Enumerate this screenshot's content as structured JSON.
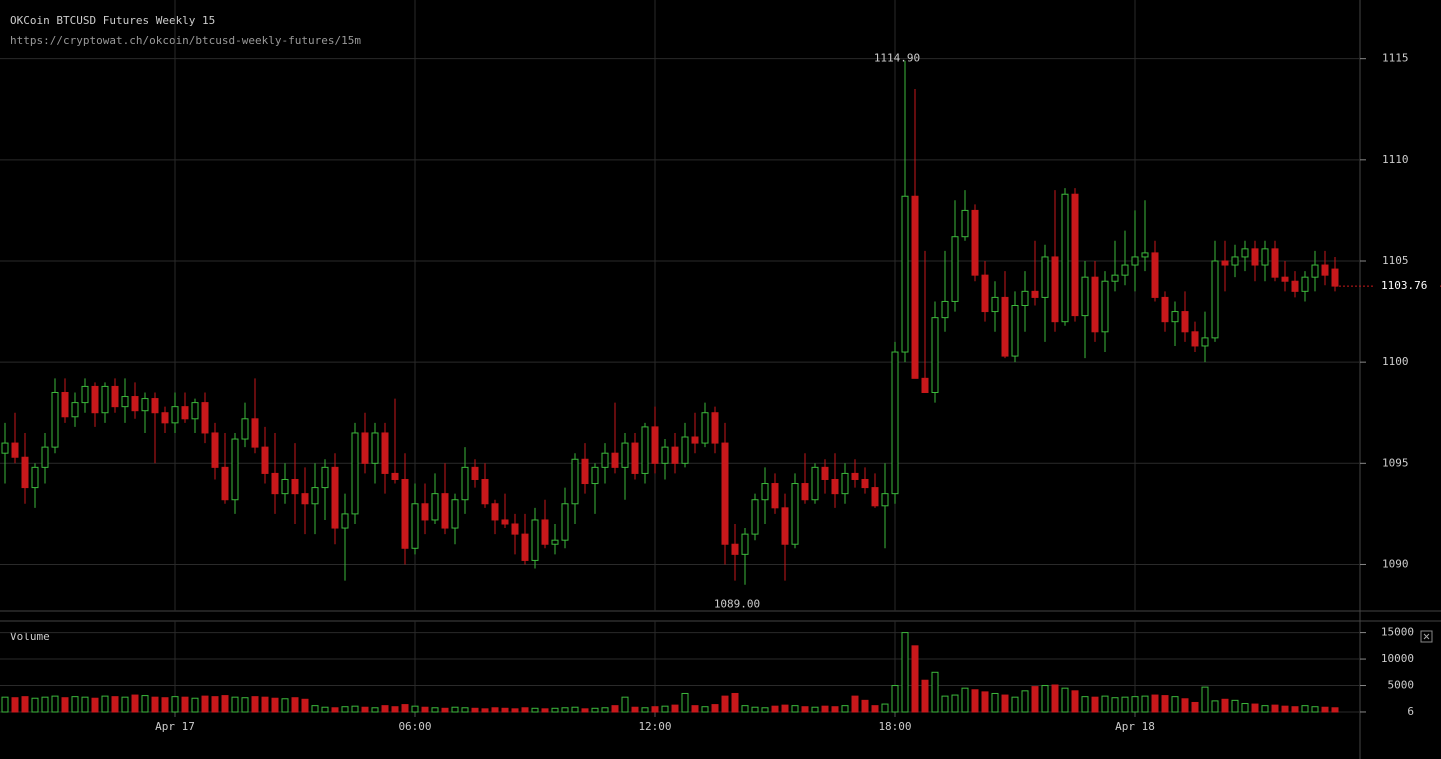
{
  "chart_data": [
    {
      "type": "candlestick",
      "title": "OKCoin BTCUSD Futures Weekly 15",
      "subtitle": "https://cryptowat.ch/okcoin/btcusd-weekly-futures/15m",
      "up_color": "#3cb83c",
      "down_color": "#c8181b",
      "xlim": [
        -0.5,
        135.5
      ],
      "xticks": [
        {
          "value": 17,
          "label": "Apr 17"
        },
        {
          "value": 41,
          "label": "06:00"
        },
        {
          "value": 65,
          "label": "12:00"
        },
        {
          "value": 89,
          "label": "18:00"
        },
        {
          "value": 113,
          "label": "Apr 18"
        }
      ],
      "ylim": [
        1087.7,
        1117.9
      ],
      "yticks": [
        1090,
        1095,
        1100,
        1105,
        1110,
        1115
      ],
      "grid": true,
      "last_price": {
        "value": 1103.76,
        "label": "1103.76"
      },
      "annotations": [
        {
          "x": 90,
          "value": 1114.9,
          "label": "1114.90",
          "position": "above"
        },
        {
          "x": 74,
          "value": 1089,
          "label": "1089.00",
          "position": "below"
        }
      ],
      "candles": [
        [
          1095.5,
          1097,
          1094,
          1096
        ],
        [
          1096,
          1097.5,
          1095,
          1095.3
        ],
        [
          1095.3,
          1096.5,
          1093,
          1093.8
        ],
        [
          1093.8,
          1095,
          1092.8,
          1094.8
        ],
        [
          1094.8,
          1096.5,
          1094,
          1095.8
        ],
        [
          1095.8,
          1099.2,
          1095.5,
          1098.5
        ],
        [
          1098.5,
          1099.2,
          1097,
          1097.3
        ],
        [
          1097.3,
          1098.5,
          1096.8,
          1098
        ],
        [
          1098,
          1099.2,
          1097.5,
          1098.8
        ],
        [
          1098.8,
          1099,
          1096.8,
          1097.5
        ],
        [
          1097.5,
          1099,
          1097,
          1098.8
        ],
        [
          1098.8,
          1099.2,
          1097.5,
          1097.8
        ],
        [
          1097.8,
          1099.2,
          1097,
          1098.3
        ],
        [
          1098.3,
          1099,
          1097.2,
          1097.6
        ],
        [
          1097.6,
          1098.5,
          1096.5,
          1098.2
        ],
        [
          1098.2,
          1098.5,
          1095,
          1097.5
        ],
        [
          1097.5,
          1097.8,
          1096.5,
          1097
        ],
        [
          1097,
          1098.5,
          1096.5,
          1097.8
        ],
        [
          1097.8,
          1098.5,
          1097,
          1097.2
        ],
        [
          1097.2,
          1098.2,
          1096.5,
          1098
        ],
        [
          1098,
          1098.5,
          1096,
          1096.5
        ],
        [
          1096.5,
          1097,
          1094.2,
          1094.8
        ],
        [
          1094.8,
          1096.5,
          1093,
          1093.2
        ],
        [
          1093.2,
          1096.5,
          1092.5,
          1096.2
        ],
        [
          1096.2,
          1098,
          1095.8,
          1097.2
        ],
        [
          1097.2,
          1099.2,
          1095.5,
          1095.8
        ],
        [
          1095.8,
          1096.8,
          1094,
          1094.5
        ],
        [
          1094.5,
          1096.5,
          1092.5,
          1093.5
        ],
        [
          1093.5,
          1095,
          1093,
          1094.2
        ],
        [
          1094.2,
          1096,
          1092,
          1093.5
        ],
        [
          1093.5,
          1094.8,
          1091.5,
          1093
        ],
        [
          1093,
          1095,
          1091.5,
          1093.8
        ],
        [
          1093.8,
          1095.2,
          1092.2,
          1094.8
        ],
        [
          1094.8,
          1095.5,
          1091,
          1091.8
        ],
        [
          1091.8,
          1093.5,
          1089.2,
          1092.5
        ],
        [
          1092.5,
          1097,
          1092,
          1096.5
        ],
        [
          1096.5,
          1097.5,
          1094.5,
          1095
        ],
        [
          1095,
          1097,
          1094,
          1096.5
        ],
        [
          1096.5,
          1097,
          1093.5,
          1094.5
        ],
        [
          1094.5,
          1098.2,
          1094,
          1094.2
        ],
        [
          1094.2,
          1095.5,
          1090,
          1090.8
        ],
        [
          1090.8,
          1094,
          1090.5,
          1093
        ],
        [
          1093,
          1094,
          1091.5,
          1092.2
        ],
        [
          1092.2,
          1094.5,
          1092,
          1093.5
        ],
        [
          1093.5,
          1095,
          1091.5,
          1091.8
        ],
        [
          1091.8,
          1093.5,
          1091,
          1093.2
        ],
        [
          1093.2,
          1095.8,
          1092.5,
          1094.8
        ],
        [
          1094.8,
          1095.2,
          1093.8,
          1094.2
        ],
        [
          1094.2,
          1095,
          1092.8,
          1093
        ],
        [
          1093,
          1093.2,
          1091.5,
          1092.2
        ],
        [
          1092.2,
          1093.5,
          1091.8,
          1092
        ],
        [
          1092,
          1092.5,
          1090.5,
          1091.5
        ],
        [
          1091.5,
          1092.5,
          1090,
          1090.2
        ],
        [
          1090.2,
          1092.8,
          1089.8,
          1092.2
        ],
        [
          1092.2,
          1093.2,
          1090.8,
          1091
        ],
        [
          1091,
          1092,
          1090.5,
          1091.2
        ],
        [
          1091.2,
          1093.8,
          1090.8,
          1093
        ],
        [
          1093,
          1095.5,
          1092,
          1095.2
        ],
        [
          1095.2,
          1096,
          1093.5,
          1094
        ],
        [
          1094,
          1095,
          1092.5,
          1094.8
        ],
        [
          1094.8,
          1096,
          1094,
          1095.5
        ],
        [
          1095.5,
          1098,
          1094.5,
          1094.8
        ],
        [
          1094.8,
          1096.5,
          1093.2,
          1096
        ],
        [
          1096,
          1096.5,
          1094.2,
          1094.5
        ],
        [
          1094.5,
          1097,
          1094,
          1096.8
        ],
        [
          1096.8,
          1097.8,
          1094.5,
          1095
        ],
        [
          1095,
          1096.2,
          1094.2,
          1095.8
        ],
        [
          1095.8,
          1096.5,
          1094.5,
          1095
        ],
        [
          1095,
          1097,
          1094.8,
          1096.3
        ],
        [
          1096.3,
          1097.5,
          1095.5,
          1096
        ],
        [
          1096,
          1098,
          1095.8,
          1097.5
        ],
        [
          1097.5,
          1097.8,
          1095.5,
          1096
        ],
        [
          1096,
          1097,
          1090,
          1091
        ],
        [
          1091,
          1092,
          1089.2,
          1090.5
        ],
        [
          1090.5,
          1091.8,
          1089,
          1091.5
        ],
        [
          1091.5,
          1093.5,
          1091.2,
          1093.2
        ],
        [
          1093.2,
          1094.8,
          1092,
          1094
        ],
        [
          1094,
          1094.5,
          1092.5,
          1092.8
        ],
        [
          1092.8,
          1093.5,
          1089.2,
          1091
        ],
        [
          1091,
          1094.5,
          1090.8,
          1094
        ],
        [
          1094,
          1095.5,
          1093,
          1093.2
        ],
        [
          1093.2,
          1095,
          1093,
          1094.8
        ],
        [
          1094.8,
          1095.2,
          1093.5,
          1094.2
        ],
        [
          1094.2,
          1095.5,
          1092.8,
          1093.5
        ],
        [
          1093.5,
          1095,
          1093,
          1094.5
        ],
        [
          1094.5,
          1095.2,
          1093.8,
          1094.2
        ],
        [
          1094.2,
          1094.8,
          1093.5,
          1093.8
        ],
        [
          1093.8,
          1094.5,
          1092.8,
          1092.9
        ],
        [
          1092.9,
          1095,
          1090.8,
          1093.5
        ],
        [
          1093.5,
          1101,
          1093,
          1100.5
        ],
        [
          1100.5,
          1114.9,
          1100,
          1108.2
        ],
        [
          1108.2,
          1113.5,
          1099.5,
          1099.2
        ],
        [
          1099.2,
          1105.5,
          1098.8,
          1098.5
        ],
        [
          1098.5,
          1103,
          1098,
          1102.2
        ],
        [
          1102.2,
          1105.5,
          1101.5,
          1103
        ],
        [
          1103,
          1108,
          1102.5,
          1106.2
        ],
        [
          1106.2,
          1108.5,
          1106,
          1107.5
        ],
        [
          1107.5,
          1107.8,
          1104,
          1104.3
        ],
        [
          1104.3,
          1105,
          1102,
          1102.5
        ],
        [
          1102.5,
          1104,
          1101.5,
          1103.2
        ],
        [
          1103.2,
          1104.5,
          1100.2,
          1100.3
        ],
        [
          1100.3,
          1103.5,
          1100,
          1102.8
        ],
        [
          1102.8,
          1104.5,
          1101.5,
          1103.5
        ],
        [
          1103.5,
          1106,
          1102.8,
          1103.2
        ],
        [
          1103.2,
          1105.8,
          1101,
          1105.2
        ],
        [
          1105.2,
          1108.5,
          1101.5,
          1102
        ],
        [
          1102,
          1108.6,
          1101.8,
          1108.3
        ],
        [
          1108.3,
          1108.6,
          1102,
          1102.3
        ],
        [
          1102.3,
          1105,
          1100.2,
          1104.2
        ],
        [
          1104.2,
          1105,
          1101,
          1101.5
        ],
        [
          1101.5,
          1104.5,
          1100.5,
          1104
        ],
        [
          1104,
          1106,
          1103.5,
          1104.3
        ],
        [
          1104.3,
          1106.5,
          1103.8,
          1104.8
        ],
        [
          1104.8,
          1107.5,
          1103.5,
          1105.2
        ],
        [
          1105.2,
          1108,
          1104.5,
          1105.4
        ],
        [
          1105.4,
          1106,
          1103,
          1103.2
        ],
        [
          1103.2,
          1103.5,
          1101.5,
          1102
        ],
        [
          1102,
          1103,
          1100.8,
          1102.5
        ],
        [
          1102.5,
          1103.5,
          1101,
          1101.5
        ],
        [
          1101.5,
          1102,
          1100.5,
          1100.8
        ],
        [
          1100.8,
          1102.5,
          1100,
          1101.2
        ],
        [
          1101.2,
          1106,
          1101,
          1105
        ],
        [
          1105,
          1106,
          1103.5,
          1104.8
        ],
        [
          1104.8,
          1105.8,
          1104.2,
          1105.2
        ],
        [
          1105.2,
          1106,
          1104.5,
          1105.6
        ],
        [
          1105.6,
          1106,
          1104,
          1104.8
        ],
        [
          1104.8,
          1106,
          1104,
          1105.6
        ],
        [
          1105.6,
          1106,
          1104,
          1104.2
        ],
        [
          1104.2,
          1105,
          1103.5,
          1104
        ],
        [
          1104,
          1104.5,
          1103.2,
          1103.5
        ],
        [
          1103.5,
          1104.5,
          1103,
          1104.2
        ],
        [
          1104.2,
          1105.5,
          1103.5,
          1104.8
        ],
        [
          1104.8,
          1105.5,
          1103.8,
          1104.3
        ],
        [
          1104.6,
          1105.2,
          1103.5,
          1103.76
        ]
      ]
    },
    {
      "type": "bar",
      "title": "Volume",
      "ylim": [
        0,
        17000
      ],
      "yticks": [
        6,
        5000,
        10000,
        15000
      ],
      "grid": true,
      "values": [
        2800,
        2700,
        2900,
        2600,
        2800,
        3000,
        2700,
        2900,
        2800,
        2600,
        3000,
        2900,
        2800,
        3200,
        3100,
        2800,
        2700,
        2900,
        2800,
        2600,
        3000,
        2900,
        3100,
        2800,
        2700,
        2900,
        2800,
        2600,
        2500,
        2700,
        2400,
        1200,
        900,
        800,
        1000,
        1100,
        900,
        800,
        1200,
        1000,
        1400,
        1100,
        900,
        800,
        700,
        900,
        800,
        700,
        600,
        800,
        700,
        600,
        800,
        700,
        600,
        700,
        800,
        900,
        600,
        700,
        800,
        1200,
        2800,
        900,
        800,
        1000,
        1100,
        1300,
        3500,
        1200,
        1000,
        1400,
        3000,
        3500,
        1200,
        900,
        800,
        1100,
        1300,
        1200,
        1000,
        900,
        1100,
        1000,
        1200,
        3000,
        2200,
        1200,
        1500,
        5000,
        15000,
        12500,
        6000,
        7500,
        3000,
        3200,
        4500,
        4200,
        3800,
        3500,
        3200,
        2800,
        4000,
        4800,
        5000,
        5100,
        4500,
        4000,
        2900,
        2800,
        3000,
        2700,
        2800,
        2900,
        3000,
        3200,
        3100,
        2900,
        2500,
        1800,
        4700,
        2100,
        2400,
        2200,
        1600,
        1500,
        1200,
        1300,
        1100,
        1000,
        1200,
        1000,
        900,
        800
      ]
    }
  ]
}
